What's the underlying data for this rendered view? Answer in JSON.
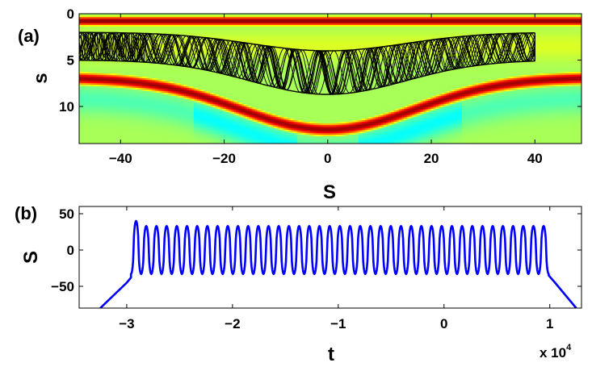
{
  "chart_data": [
    {
      "panel_label": "(a)",
      "type": "heatmap",
      "xlabel": "S",
      "ylabel": "s",
      "xlim": [
        -48,
        49
      ],
      "ylim": [
        0,
        14
      ],
      "y_reversed": true,
      "xticks": [
        -40,
        -20,
        0,
        20,
        40
      ],
      "xtick_labels": [
        "−40",
        "−20",
        "0",
        "20",
        "40"
      ],
      "yticks": [
        0,
        5,
        10
      ],
      "ytick_labels": [
        "0",
        "5",
        "10"
      ],
      "colormap": "jet",
      "ridges": [
        {
          "name": "top band",
          "center": 0.8,
          "width": 0.75
        },
        {
          "name": "lower band",
          "baseline": 6.9,
          "dip": 5.6,
          "width_S": 17,
          "halfwidth": 1.0
        }
      ],
      "trajectory_overlay": {
        "color": "#000000",
        "S_range": [
          -48,
          40
        ],
        "upper_edge_at_ends": 2.0,
        "upper_edge_at_center": 4.0,
        "lower_edge_at_ends": 5.0,
        "lower_edge_at_center": 8.7,
        "dense_segment_S": [
          -48,
          -35
        ]
      }
    },
    {
      "panel_label": "(b)",
      "type": "line",
      "xlabel": "t",
      "ylabel": "S",
      "x_multiplier_label": "x 10",
      "x_multiplier_exponent": "4",
      "xlim": [
        -3.45,
        1.3
      ],
      "ylim": [
        -80,
        60
      ],
      "xticks": [
        -3,
        -2,
        -1,
        0,
        1
      ],
      "xtick_labels": [
        "−3",
        "−2",
        "−1",
        "0",
        "1"
      ],
      "yticks": [
        -50,
        0,
        50
      ],
      "ytick_labels": [
        "−50",
        "0",
        "50"
      ],
      "series": [
        {
          "color": "#0000ff",
          "entry": [
            [
              -3.25,
              -80
            ],
            [
              -3.0,
              -45
            ],
            [
              -2.96,
              -38
            ]
          ],
          "oscillation": {
            "t_start": -2.96,
            "t_end": 0.99,
            "cycles": 41,
            "upper": 33,
            "lower": -33,
            "first_cycle_upper": 40
          },
          "exit": [
            [
              0.99,
              -35
            ],
            [
              1.05,
              -45
            ],
            [
              1.25,
              -80
            ]
          ]
        }
      ]
    }
  ]
}
